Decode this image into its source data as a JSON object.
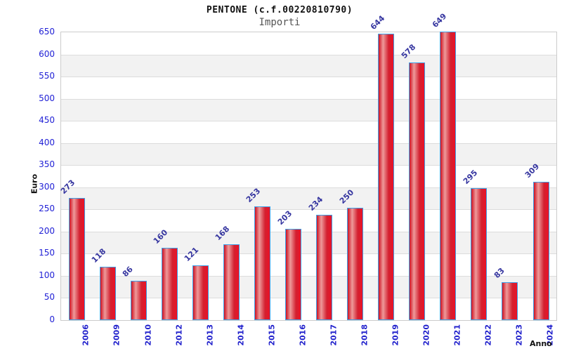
{
  "header": {
    "title": "PENTONE (c.f.00220810790)",
    "subtitle": "Importi"
  },
  "chart_data": {
    "type": "bar",
    "title": "PENTONE (c.f.00220810790)",
    "subtitle": "Importi",
    "xlabel": "Anno",
    "ylabel": "Euro",
    "categories": [
      "2006",
      "2009",
      "2010",
      "2012",
      "2013",
      "2014",
      "2015",
      "2016",
      "2017",
      "2018",
      "2019",
      "2020",
      "2021",
      "2022",
      "2023",
      "2024"
    ],
    "values": [
      273,
      118,
      86,
      160,
      121,
      168,
      253,
      203,
      234,
      250,
      644,
      578,
      649,
      295,
      83,
      309
    ],
    "ylim": [
      0,
      650
    ],
    "ytick_step": 50,
    "yticks": [
      0,
      50,
      100,
      150,
      200,
      250,
      300,
      350,
      400,
      450,
      500,
      550,
      600,
      650
    ],
    "grid": "horizontal-bands-alternating",
    "legend": "none",
    "colors": {
      "bar_fill_edge": "#e01222",
      "bar_fill_highlight": "#ee9a9a",
      "bar_border": "#3da0e8",
      "tick_label": "#2222cc",
      "value_label": "#3636a0",
      "band_gray": "#f2f2f2",
      "grid_line": "#dcdcdc",
      "subtitle_text": "#555555"
    }
  }
}
